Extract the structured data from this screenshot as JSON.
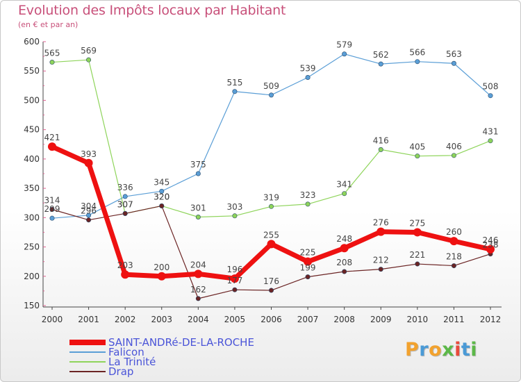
{
  "title": "Evolution des Impôts locaux par Habitant",
  "subtitle": "(en € et par an)",
  "logo": {
    "text": "Proxiti",
    "colors": [
      "#f2a22e",
      "#4a9ad6",
      "#f2a22e",
      "#5cb848",
      "#e94b3c",
      "#4a9ad6",
      "#5cb848"
    ]
  },
  "chart_data": {
    "type": "line",
    "categories": [
      "2000",
      "2001",
      "2002",
      "2003",
      "2004",
      "2005",
      "2006",
      "2007",
      "2008",
      "2009",
      "2010",
      "2011",
      "2012"
    ],
    "ylim": [
      150,
      600
    ],
    "yticks": [
      150,
      200,
      250,
      300,
      350,
      400,
      450,
      500,
      550,
      600
    ],
    "grid": false,
    "legend": "bottom-left",
    "series": [
      {
        "name": "Falicon",
        "color": "#5a9ed6",
        "values": [
          299,
          304,
          336,
          345,
          375,
          515,
          509,
          539,
          579,
          562,
          566,
          563,
          508
        ]
      },
      {
        "name": "La Trinité",
        "color": "#8ed45a",
        "values": [
          565,
          569,
          307,
          320,
          301,
          303,
          319,
          323,
          341,
          416,
          405,
          406,
          431
        ]
      },
      {
        "name": "Drap",
        "color": "#6b2424",
        "values": [
          314,
          296,
          307,
          320,
          162,
          177,
          176,
          199,
          208,
          212,
          221,
          218,
          238
        ]
      },
      {
        "name": "SAINT-ANDRé-DE-LA-ROCHE",
        "color": "#ee1111",
        "values": [
          421,
          393,
          203,
          200,
          204,
          196,
          255,
          225,
          248,
          276,
          275,
          260,
          246
        ]
      }
    ],
    "legend_order": [
      3,
      0,
      1,
      2
    ]
  }
}
